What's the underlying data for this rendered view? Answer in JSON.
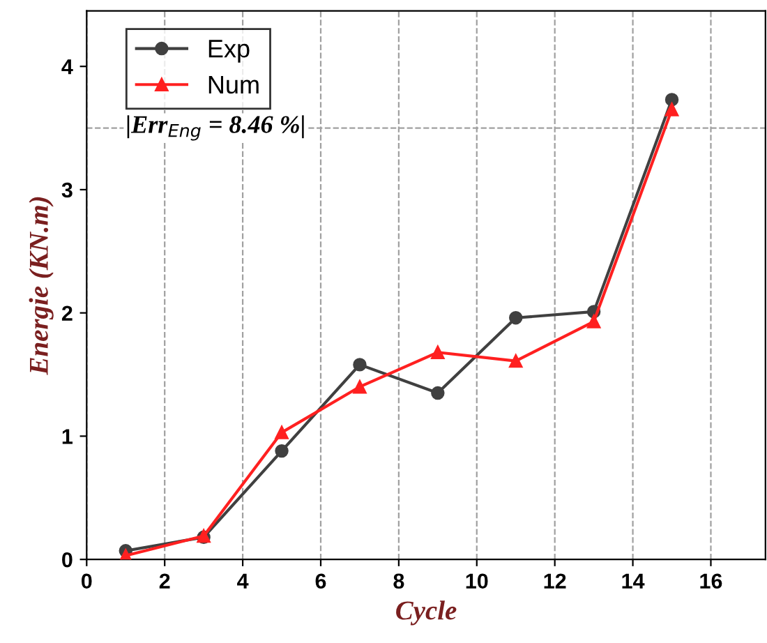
{
  "chart_data": {
    "type": "line",
    "xlabel": "Cycle",
    "ylabel": "Energie (KN.m)",
    "x": [
      1,
      3,
      5,
      7,
      9,
      11,
      13,
      15
    ],
    "series": [
      {
        "name": "Exp",
        "color": "#404040",
        "marker": "circle",
        "values": [
          0.07,
          0.18,
          0.88,
          1.58,
          1.35,
          1.96,
          2.01,
          3.73
        ]
      },
      {
        "name": "Num",
        "color": "#ff2020",
        "marker": "triangle",
        "values": [
          0.03,
          0.19,
          1.03,
          1.4,
          1.68,
          1.61,
          1.93,
          3.65
        ]
      }
    ],
    "xlim": [
      0,
      17.4
    ],
    "xticks": [
      0,
      2,
      4,
      6,
      8,
      10,
      12,
      14,
      16
    ],
    "ylim": [
      0,
      4.45
    ],
    "yticks": [
      0,
      1,
      2,
      3,
      4
    ],
    "grid": "x",
    "legend": "top left",
    "ref_lines": [
      {
        "axis": "y",
        "value": 3.5,
        "color": "#a0a0a0",
        "line_style": "dashed"
      }
    ],
    "annotations": [
      {
        "text": "|Err$_{Eng}$ = 8.46 %|",
        "x": 1,
        "y": 3.5
      }
    ]
  }
}
